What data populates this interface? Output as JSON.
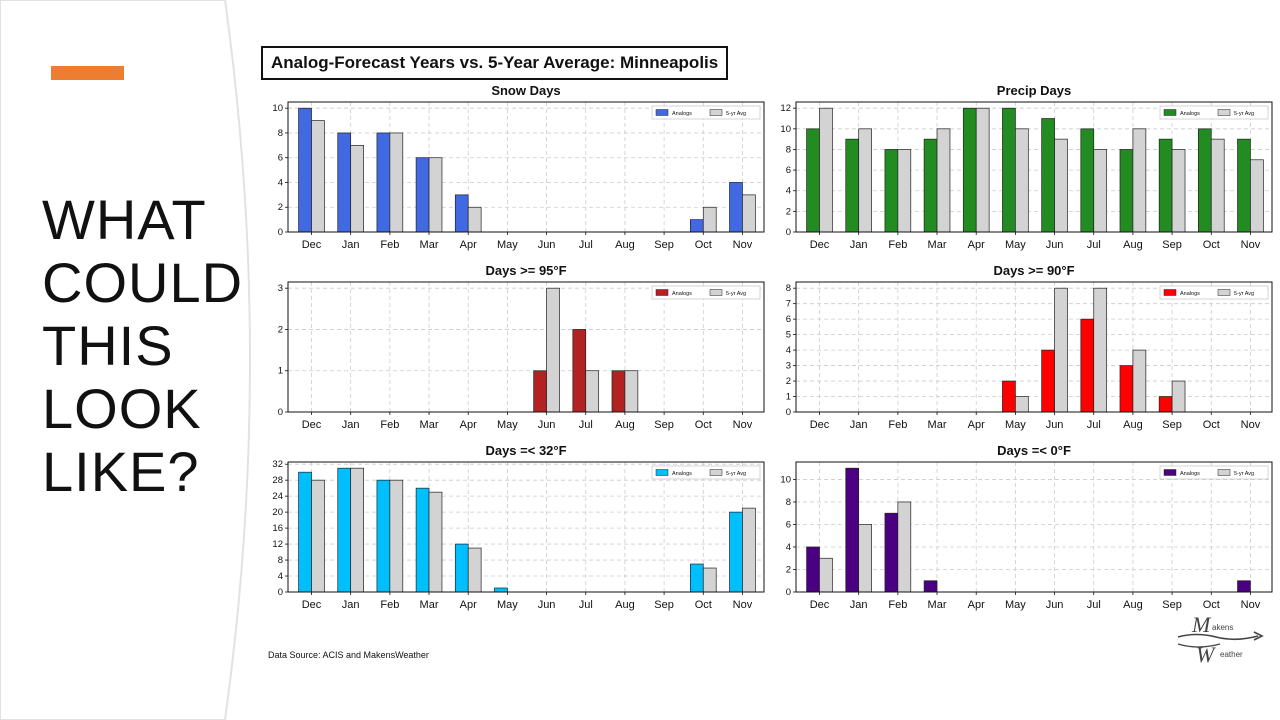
{
  "slide": {
    "heading_lines": [
      "WHAT",
      "COULD",
      "THIS",
      "LOOK",
      "LIKE?"
    ],
    "title": "Analog-Forecast Years vs. 5-Year Average: Minneapolis",
    "source": "Data Source: ACIS and MakensWeather",
    "logo_top": "akens",
    "logo_bottom": "eather"
  },
  "colors": {
    "accent": "#ED7D31",
    "avg": "#D3D3D3",
    "grid": "#CCCCCC"
  },
  "legend_labels": [
    "Analogs",
    "5-yr Avg"
  ],
  "chart_data": [
    {
      "type": "bar",
      "title": "Snow Days",
      "categories": [
        "Dec",
        "Jan",
        "Feb",
        "Mar",
        "Apr",
        "May",
        "Jun",
        "Jul",
        "Aug",
        "Sep",
        "Oct",
        "Nov"
      ],
      "series": [
        {
          "name": "Analogs",
          "color": "#4169E1",
          "values": [
            10,
            8,
            8,
            6,
            3,
            0,
            0,
            0,
            0,
            0,
            1,
            4
          ]
        },
        {
          "name": "5-yr Avg",
          "color": "#D3D3D3",
          "values": [
            9,
            7,
            8,
            6,
            2,
            0,
            0,
            0,
            0,
            0,
            2,
            3
          ]
        }
      ],
      "ylim": [
        0,
        10.5
      ],
      "yticks": [
        0,
        2,
        4,
        6,
        8,
        10
      ],
      "legend": "top-right"
    },
    {
      "type": "bar",
      "title": "Precip Days",
      "categories": [
        "Dec",
        "Jan",
        "Feb",
        "Mar",
        "Apr",
        "May",
        "Jun",
        "Jul",
        "Aug",
        "Sep",
        "Oct",
        "Nov"
      ],
      "series": [
        {
          "name": "Analogs",
          "color": "#228B22",
          "values": [
            10,
            9,
            8,
            9,
            12,
            12,
            11,
            10,
            8,
            9,
            10,
            9
          ]
        },
        {
          "name": "5-yr Avg",
          "color": "#D3D3D3",
          "values": [
            12,
            10,
            8,
            10,
            12,
            10,
            9,
            8,
            10,
            8,
            9,
            7
          ]
        }
      ],
      "ylim": [
        0,
        12.6
      ],
      "yticks": [
        0,
        2,
        4,
        6,
        8,
        10,
        12
      ],
      "legend": "top-right"
    },
    {
      "type": "bar",
      "title": "Days >= 95°F",
      "categories": [
        "Dec",
        "Jan",
        "Feb",
        "Mar",
        "Apr",
        "May",
        "Jun",
        "Jul",
        "Aug",
        "Sep",
        "Oct",
        "Nov"
      ],
      "series": [
        {
          "name": "Analogs",
          "color": "#B22222",
          "values": [
            0,
            0,
            0,
            0,
            0,
            0,
            1,
            2,
            1,
            0,
            0,
            0
          ]
        },
        {
          "name": "5-yr Avg",
          "color": "#D3D3D3",
          "values": [
            0,
            0,
            0,
            0,
            0,
            0,
            3,
            1,
            1,
            0,
            0,
            0
          ]
        }
      ],
      "ylim": [
        0,
        3.15
      ],
      "yticks": [
        0,
        1,
        2,
        3
      ],
      "legend": "top-right"
    },
    {
      "type": "bar",
      "title": "Days >= 90°F",
      "categories": [
        "Dec",
        "Jan",
        "Feb",
        "Mar",
        "Apr",
        "May",
        "Jun",
        "Jul",
        "Aug",
        "Sep",
        "Oct",
        "Nov"
      ],
      "series": [
        {
          "name": "Analogs",
          "color": "#FF0000",
          "values": [
            0,
            0,
            0,
            0,
            0,
            2,
            4,
            6,
            3,
            1,
            0,
            0
          ]
        },
        {
          "name": "5-yr Avg",
          "color": "#D3D3D3",
          "values": [
            0,
            0,
            0,
            0,
            0,
            1,
            8,
            8,
            4,
            2,
            0,
            0
          ]
        }
      ],
      "ylim": [
        0,
        8.4
      ],
      "yticks": [
        0,
        1,
        2,
        3,
        4,
        5,
        6,
        7,
        8
      ],
      "legend": "top-right"
    },
    {
      "type": "bar",
      "title": "Days =< 32°F",
      "categories": [
        "Dec",
        "Jan",
        "Feb",
        "Mar",
        "Apr",
        "May",
        "Jun",
        "Jul",
        "Aug",
        "Sep",
        "Oct",
        "Nov"
      ],
      "series": [
        {
          "name": "Analogs",
          "color": "#00BFFF",
          "values": [
            30,
            31,
            28,
            26,
            12,
            1,
            0,
            0,
            0,
            0,
            7,
            20
          ]
        },
        {
          "name": "5-yr Avg",
          "color": "#D3D3D3",
          "values": [
            28,
            31,
            28,
            25,
            11,
            0,
            0,
            0,
            0,
            0,
            6,
            21
          ]
        }
      ],
      "ylim": [
        0,
        32.55
      ],
      "yticks": [
        0,
        4,
        8,
        12,
        16,
        20,
        24,
        28,
        32
      ],
      "legend": "top-right"
    },
    {
      "type": "bar",
      "title": "Days =< 0°F",
      "categories": [
        "Dec",
        "Jan",
        "Feb",
        "Mar",
        "Apr",
        "May",
        "Jun",
        "Jul",
        "Aug",
        "Sep",
        "Oct",
        "Nov"
      ],
      "series": [
        {
          "name": "Analogs",
          "color": "#4B0082",
          "values": [
            4,
            11,
            7,
            1,
            0,
            0,
            0,
            0,
            0,
            0,
            0,
            1
          ]
        },
        {
          "name": "5-yr Avg",
          "color": "#D3D3D3",
          "values": [
            3,
            6,
            8,
            0,
            0,
            0,
            0,
            0,
            0,
            0,
            0,
            0
          ]
        }
      ],
      "ylim": [
        0,
        11.55
      ],
      "yticks": [
        0,
        2,
        4,
        6,
        8,
        10
      ],
      "legend": "top-right"
    }
  ]
}
